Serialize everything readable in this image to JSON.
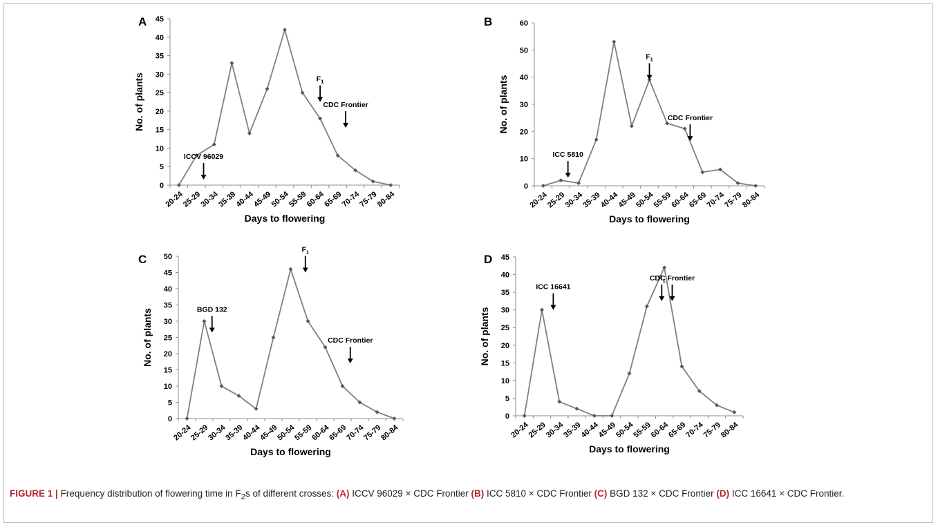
{
  "figure": {
    "label": "FIGURE 1 |",
    "caption_parts": [
      {
        "t": "Frequency distribution of flowering time in F",
        "s": "n"
      },
      {
        "t": "2",
        "s": "sub"
      },
      {
        "t": "s of different crosses: ",
        "s": "n"
      },
      {
        "t": "(A)",
        "s": "b"
      },
      {
        "t": " ICCV 96029 × CDC Frontier ",
        "s": "n"
      },
      {
        "t": "(B)",
        "s": "b"
      },
      {
        "t": " ICC 5810 × CDC Frontier ",
        "s": "n"
      },
      {
        "t": "(C)",
        "s": "b"
      },
      {
        "t": " BGD 132 × CDC Frontier ",
        "s": "n"
      },
      {
        "t": "(D)",
        "s": "b"
      },
      {
        "t": " ICC 16641 × CDC Frontier.",
        "s": "n"
      }
    ]
  },
  "colors": {
    "line": "#7f7f7f",
    "marker": "#595959",
    "text": "#000000",
    "accent": "#b3262e"
  },
  "chart_data": [
    {
      "panel": "A",
      "type": "line",
      "xlabel": "Days to flowering",
      "ylabel": "No. of plants",
      "categories": [
        "20-24",
        "25-29",
        "30-34",
        "35-39",
        "40-44",
        "45-49",
        "50-54",
        "55-59",
        "60-64",
        "65-69",
        "70-74",
        "75-79",
        "80-84"
      ],
      "values": [
        0,
        8,
        11,
        33,
        14,
        26,
        42,
        25,
        18,
        8,
        4,
        1,
        0
      ],
      "ylim": [
        0,
        45
      ],
      "yticks": [
        0,
        5,
        10,
        15,
        20,
        25,
        30,
        35,
        40,
        45
      ],
      "annotations": [
        {
          "text": "ICCV 96029",
          "x": 1.4,
          "y": 1.5
        },
        {
          "text": "F1",
          "x": 8.0,
          "y": 22.5
        },
        {
          "text": "CDC Frontier",
          "x": 9.45,
          "y": 15.5
        }
      ]
    },
    {
      "panel": "B",
      "type": "line",
      "xlabel": "Days to flowering",
      "ylabel": "No. of plants",
      "categories": [
        "20-24",
        "25-29",
        "30-34",
        "35-39",
        "40-44",
        "45-49",
        "50-54",
        "55-59",
        "60-64",
        "65-69",
        "70-74",
        "75-79",
        "80-84"
      ],
      "values": [
        0,
        2,
        1,
        17,
        53,
        22,
        39,
        23,
        21,
        5,
        6,
        1,
        0
      ],
      "ylim": [
        0,
        60
      ],
      "yticks": [
        0,
        10,
        20,
        30,
        40,
        50,
        60
      ],
      "annotations": [
        {
          "text": "ICC 5810",
          "x": 1.4,
          "y": 3
        },
        {
          "text": "F1",
          "x": 6.0,
          "y": 39
        },
        {
          "text": "CDC Frontier",
          "x": 8.3,
          "y": 16.5
        }
      ]
    },
    {
      "panel": "C",
      "type": "line",
      "xlabel": "Days to flowering",
      "ylabel": "No. of plants",
      "categories": [
        "20-24",
        "25-29",
        "30-34",
        "35-39",
        "40-44",
        "45-49",
        "50-54",
        "55-59",
        "60-64",
        "65-69",
        "70-74",
        "75-79",
        "80-84"
      ],
      "values": [
        0,
        30,
        10,
        7,
        3,
        25,
        46,
        30,
        22,
        10,
        5,
        2,
        0
      ],
      "ylim": [
        0,
        50
      ],
      "yticks": [
        0,
        5,
        10,
        15,
        20,
        25,
        30,
        35,
        40,
        45,
        50
      ],
      "annotations": [
        {
          "text": "BGD 132",
          "x": 1.45,
          "y": 26.5
        },
        {
          "text": "F1",
          "x": 6.85,
          "y": 45
        },
        {
          "text": "CDC Frontier",
          "x": 9.45,
          "y": 17
        }
      ]
    },
    {
      "panel": "D",
      "type": "line",
      "xlabel": "Days to flowering",
      "ylabel": "No. of plants",
      "categories": [
        "20-24",
        "25-29",
        "30-34",
        "35-39",
        "40-44",
        "45-49",
        "50-54",
        "55-59",
        "60-64",
        "65-69",
        "70-74",
        "75-79",
        "80-84"
      ],
      "values": [
        0,
        30,
        4,
        2,
        0,
        0,
        12,
        31,
        42,
        14,
        7,
        3,
        1
      ],
      "ylim": [
        0,
        45
      ],
      "yticks": [
        0,
        5,
        10,
        15,
        20,
        25,
        30,
        35,
        40,
        45
      ],
      "annotations": [
        {
          "text": "ICC 16641",
          "x": 1.65,
          "y": 30
        },
        {
          "text": "F1",
          "x": 7.85,
          "y": 32.5
        },
        {
          "text": "CDC Frontier",
          "x": 8.45,
          "y": 32.5
        }
      ]
    }
  ]
}
